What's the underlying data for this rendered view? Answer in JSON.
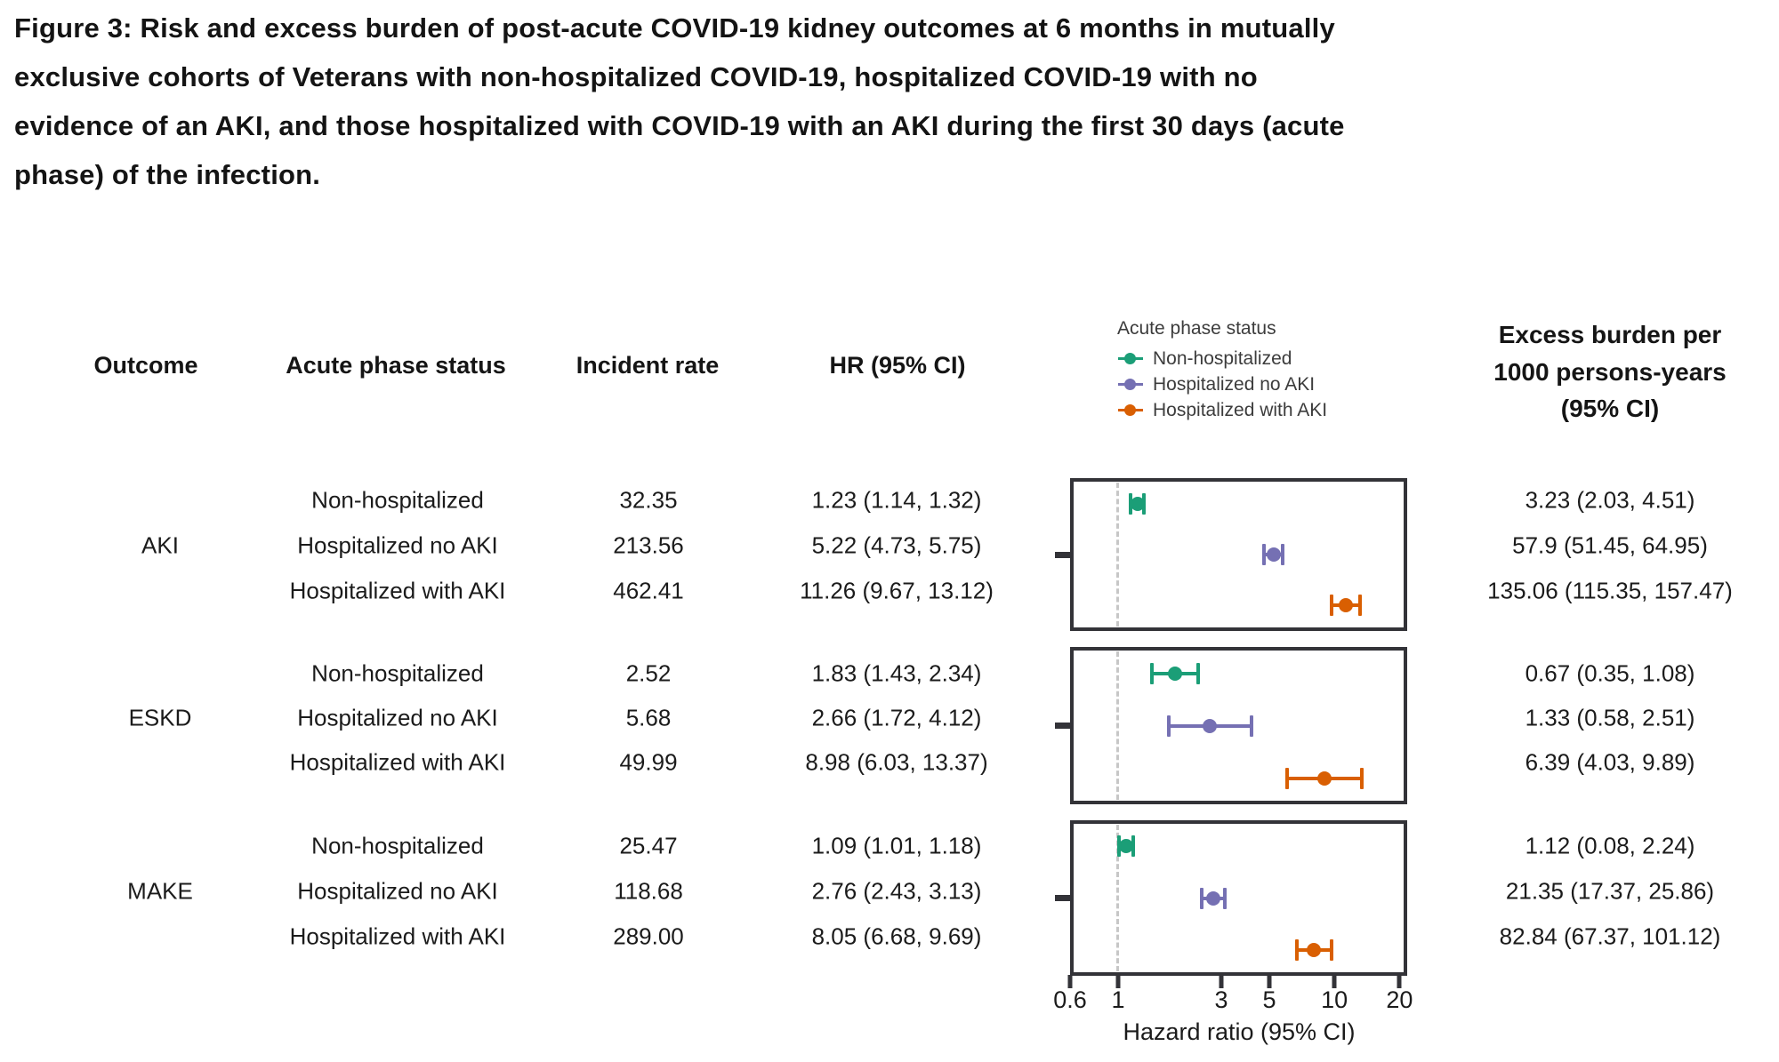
{
  "figure": {
    "title_lines": [
      "Figure 3: Risk and excess burden of post-acute COVID-19 kidney outcomes at 6 months in mutually",
      "exclusive cohorts of Veterans with non-hospitalized COVID-19, hospitalized COVID-19 with no",
      "evidence of an AKI, and those hospitalized with COVID-19 with an AKI during the first 30 days (acute",
      "phase) of the infection."
    ]
  },
  "table": {
    "headers": {
      "outcome": "Outcome",
      "status": "Acute phase status",
      "incident_rate": "Incident rate",
      "hr": "HR (95% CI)"
    },
    "excess_header_lines": [
      "Excess burden per",
      "1000 persons-years",
      "(95% CI)"
    ],
    "groups": [
      {
        "outcome": "AKI",
        "rows": [
          {
            "status": "Non-hospitalized",
            "incident_rate": "32.35",
            "hr": "1.23 (1.14, 1.32)",
            "excess_burden": "3.23 (2.03, 4.51)"
          },
          {
            "status": "Hospitalized no AKI",
            "incident_rate": "213.56",
            "hr": "5.22 (4.73, 5.75)",
            "excess_burden": "57.9 (51.45, 64.95)"
          },
          {
            "status": "Hospitalized with AKI",
            "incident_rate": "462.41",
            "hr": "11.26 (9.67, 13.12)",
            "excess_burden": "135.06 (115.35, 157.47)"
          }
        ]
      },
      {
        "outcome": "ESKD",
        "rows": [
          {
            "status": "Non-hospitalized",
            "incident_rate": "2.52",
            "hr": "1.83 (1.43, 2.34)",
            "excess_burden": "0.67 (0.35, 1.08)"
          },
          {
            "status": "Hospitalized no AKI",
            "incident_rate": "5.68",
            "hr": "2.66 (1.72, 4.12)",
            "excess_burden": "1.33 (0.58, 2.51)"
          },
          {
            "status": "Hospitalized with AKI",
            "incident_rate": "49.99",
            "hr": "8.98 (6.03, 13.37)",
            "excess_burden": "6.39 (4.03, 9.89)"
          }
        ]
      },
      {
        "outcome": "MAKE",
        "rows": [
          {
            "status": "Non-hospitalized",
            "incident_rate": "25.47",
            "hr": "1.09 (1.01, 1.18)",
            "excess_burden": "1.12 (0.08, 2.24)"
          },
          {
            "status": "Hospitalized no AKI",
            "incident_rate": "118.68",
            "hr": "2.76 (2.43, 3.13)",
            "excess_burden": "21.35 (17.37, 25.86)"
          },
          {
            "status": "Hospitalized with AKI",
            "incident_rate": "289.00",
            "hr": "8.05 (6.68, 9.69)",
            "excess_burden": "82.84 (67.37, 101.12)"
          }
        ]
      }
    ]
  },
  "legend": {
    "title": "Acute phase status",
    "items": [
      {
        "label": "Non-hospitalized",
        "color": "#1b9e77"
      },
      {
        "label": "Hospitalized no AKI",
        "color": "#7570b3"
      },
      {
        "label": "Hospitalized with AKI",
        "color": "#d95f02"
      }
    ]
  },
  "chart_data": {
    "type": "scatter",
    "subtype": "forest-plot",
    "xlabel": "Hazard ratio (95% CI)",
    "x_scale": "log",
    "x_range": [
      0.6,
      21.7
    ],
    "x_ticks": [
      0.6,
      1,
      3,
      5,
      10,
      20
    ],
    "reference_line": 1,
    "grid": false,
    "legend_position": "top",
    "panels": [
      {
        "outcome": "AKI",
        "points": [
          {
            "group": "Non-hospitalized",
            "hr": 1.23,
            "ci": [
              1.14,
              1.32
            ]
          },
          {
            "group": "Hospitalized no AKI",
            "hr": 5.22,
            "ci": [
              4.73,
              5.75
            ]
          },
          {
            "group": "Hospitalized with AKI",
            "hr": 11.26,
            "ci": [
              9.67,
              13.12
            ]
          }
        ]
      },
      {
        "outcome": "ESKD",
        "points": [
          {
            "group": "Non-hospitalized",
            "hr": 1.83,
            "ci": [
              1.43,
              2.34
            ]
          },
          {
            "group": "Hospitalized no AKI",
            "hr": 2.66,
            "ci": [
              1.72,
              4.12
            ]
          },
          {
            "group": "Hospitalized with AKI",
            "hr": 8.98,
            "ci": [
              6.03,
              13.37
            ]
          }
        ]
      },
      {
        "outcome": "MAKE",
        "points": [
          {
            "group": "Non-hospitalized",
            "hr": 1.09,
            "ci": [
              1.01,
              1.18
            ]
          },
          {
            "group": "Hospitalized no AKI",
            "hr": 2.76,
            "ci": [
              2.43,
              3.13
            ]
          },
          {
            "group": "Hospitalized with AKI",
            "hr": 8.05,
            "ci": [
              6.68,
              9.69
            ]
          }
        ]
      }
    ],
    "colors": {
      "Non-hospitalized": "#1b9e77",
      "Hospitalized no AKI": "#7570b3",
      "Hospitalized with AKI": "#d95f02"
    }
  }
}
